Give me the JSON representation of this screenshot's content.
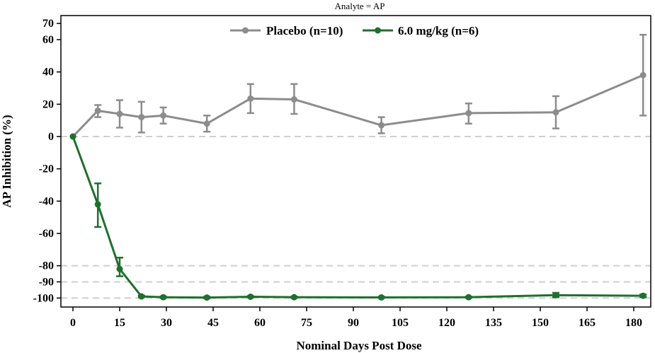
{
  "chart_data": {
    "type": "line",
    "subtitle": "Analyte = AP",
    "xlabel": "Nominal Days Post Dose",
    "ylabel": "AP Inhibition (%)",
    "xlim": [
      -4,
      186
    ],
    "ylim": [
      -105,
      72
    ],
    "xticks": [
      0,
      15,
      30,
      45,
      60,
      75,
      90,
      105,
      120,
      135,
      150,
      165,
      180
    ],
    "yticks": [
      70,
      60,
      40,
      20,
      0,
      -20,
      -40,
      -60,
      -80,
      -90,
      -100
    ],
    "reference_lines": [
      0,
      -80,
      -90,
      -100
    ],
    "legend_position": "top-center",
    "series": [
      {
        "name": "Placebo (n=10)",
        "color": "#8c8c8c",
        "x": [
          0,
          8,
          15,
          22,
          29,
          43,
          57,
          71,
          99,
          127,
          155,
          183
        ],
        "y": [
          0,
          16,
          14,
          12,
          13,
          8,
          23.5,
          23,
          7,
          14.5,
          15,
          38
        ],
        "err_low": [
          0,
          12,
          5.5,
          2.5,
          8,
          3,
          14.5,
          14,
          2,
          8,
          5,
          13
        ],
        "err_high": [
          0,
          19.5,
          22.5,
          21.5,
          18,
          13,
          32.5,
          32.5,
          12,
          20.5,
          25,
          63
        ]
      },
      {
        "name": "6.0 mg/kg (n=6)",
        "color": "#1f6f2e",
        "x": [
          0,
          8,
          15,
          22,
          29,
          43,
          57,
          71,
          99,
          127,
          155,
          183
        ],
        "y": [
          0,
          -42,
          -82,
          -99,
          -99.5,
          -99.7,
          -99.2,
          -99.5,
          -99.6,
          -99.5,
          -98.2,
          -98.6
        ],
        "err_low": [
          0,
          -56,
          -86.5,
          -99.5,
          -100,
          -100.2,
          -99.6,
          -99.9,
          -100,
          -99.9,
          -99.5,
          -99.4
        ],
        "err_high": [
          0,
          -29,
          -75,
          -98.5,
          -99,
          -99.2,
          -98.8,
          -99.1,
          -99.2,
          -99.1,
          -96.8,
          -97.8
        ]
      }
    ]
  }
}
